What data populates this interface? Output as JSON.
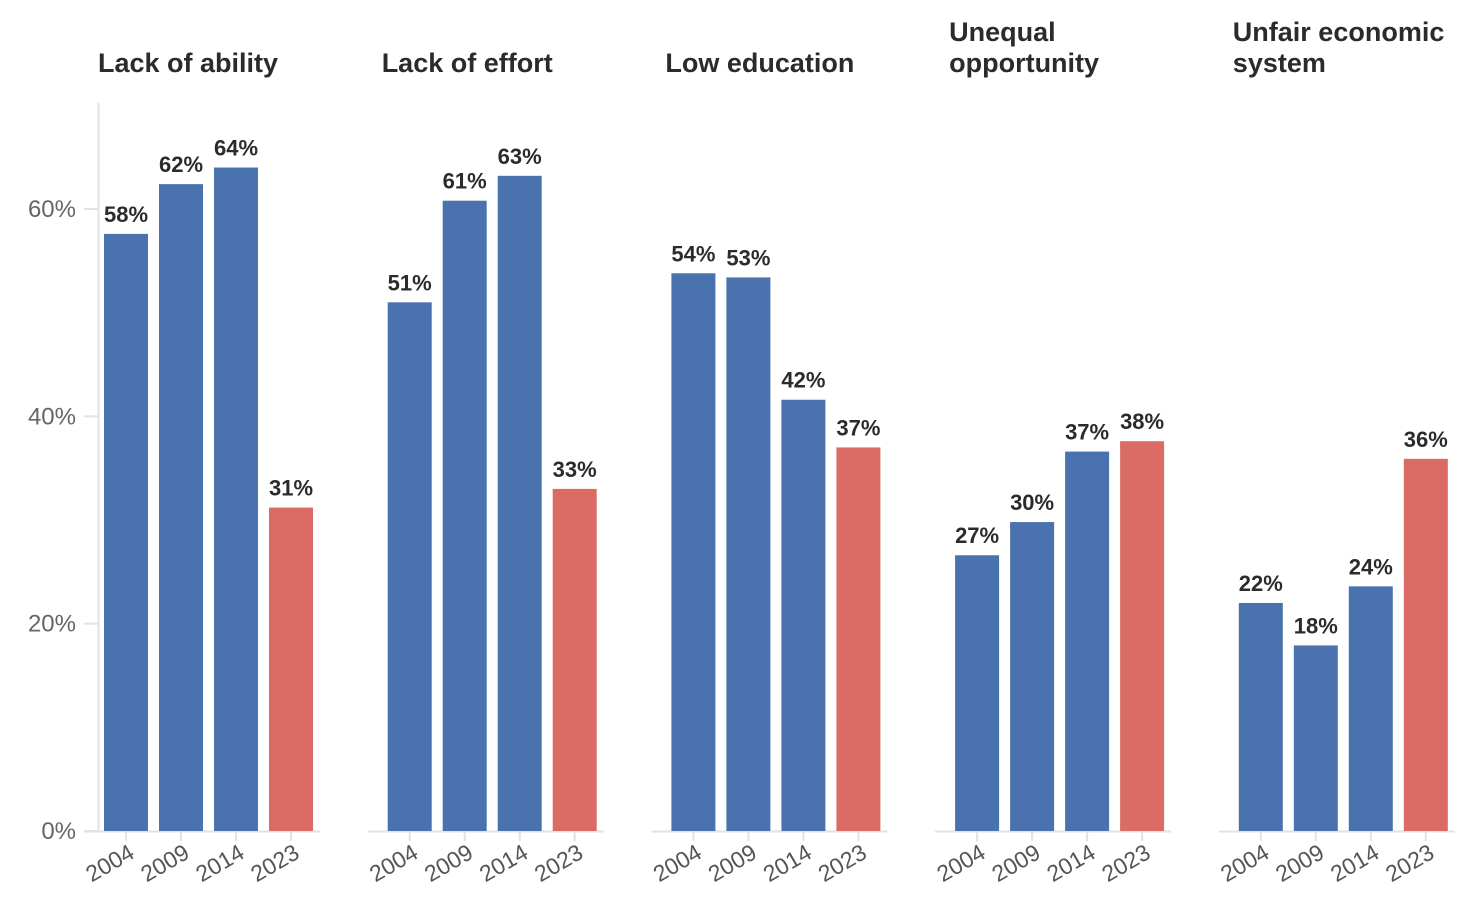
{
  "chart_data": {
    "type": "bar",
    "categories": [
      "2004",
      "2009",
      "2014",
      "2023"
    ],
    "y_ticks": [
      "0%",
      "20%",
      "40%",
      "60%"
    ],
    "ylim": [
      0,
      70
    ],
    "grid": false,
    "colors": {
      "default": "#4a72ae",
      "highlight": "#da6b65",
      "text": "#2b2b2b",
      "axis": "#e2e2e2",
      "tick_text": "#666666"
    },
    "highlight_category": "2023",
    "panels": [
      {
        "title": [
          "Lack of ability"
        ],
        "values": [
          57.6,
          62.4,
          64.0,
          31.2
        ],
        "labels": [
          "58%",
          "62%",
          "64%",
          "31%"
        ]
      },
      {
        "title": [
          "Lack of effort"
        ],
        "values": [
          51.0,
          60.8,
          63.2,
          33.0
        ],
        "labels": [
          "51%",
          "61%",
          "63%",
          "33%"
        ]
      },
      {
        "title": [
          "Low education"
        ],
        "values": [
          53.8,
          53.4,
          41.6,
          37.0
        ],
        "labels": [
          "54%",
          "53%",
          "42%",
          "37%"
        ]
      },
      {
        "title": [
          "Unequal",
          "opportunity"
        ],
        "values": [
          26.6,
          29.8,
          36.6,
          37.6
        ],
        "labels": [
          "27%",
          "30%",
          "37%",
          "38%"
        ]
      },
      {
        "title": [
          "Unfair economic",
          "system"
        ],
        "values": [
          22.0,
          17.9,
          23.6,
          35.9
        ],
        "labels": [
          "22%",
          "18%",
          "24%",
          "36%"
        ]
      }
    ]
  }
}
